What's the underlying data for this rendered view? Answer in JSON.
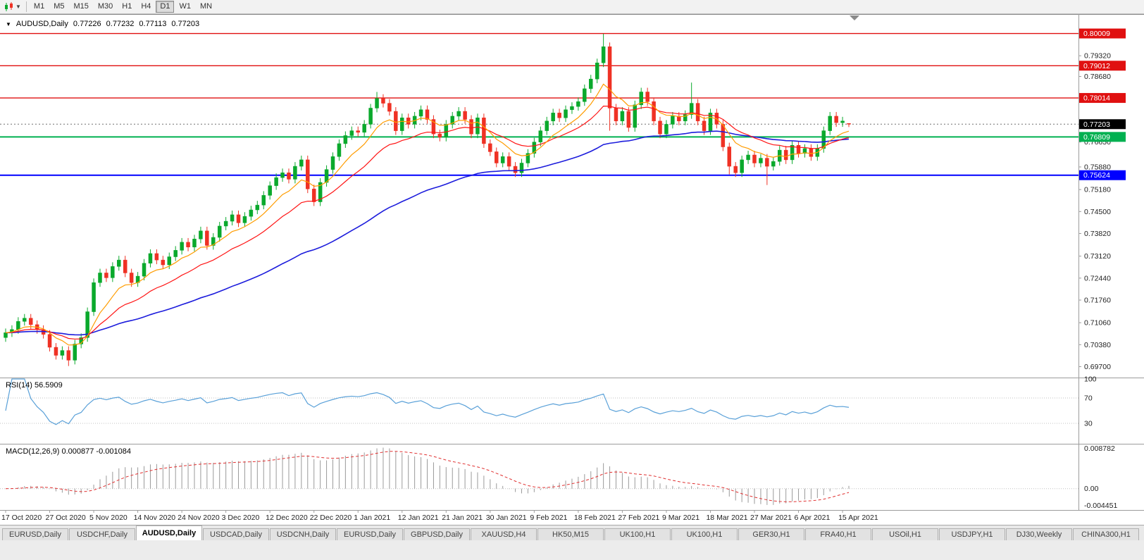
{
  "toolbar": {
    "timeframes": [
      "M1",
      "M5",
      "M15",
      "M30",
      "H1",
      "H4",
      "D1",
      "W1",
      "MN"
    ],
    "active_timeframe": "D1"
  },
  "chart": {
    "symbol_label": "AUDUSD,Daily",
    "quote": {
      "open": "0.77226",
      "high": "0.77232",
      "low": "0.77113",
      "close": "0.77203"
    },
    "rsi_label": "RSI(14) 56.5909",
    "macd_label": "MACD(12,26,9) 0.000877 -0.001084",
    "price_range": {
      "min": 0.6945,
      "max": 0.805
    },
    "colors": {
      "bull": "#0aa92c",
      "bear": "#ef3124",
      "ma_fast": "#ff9c00",
      "ma_mid": "#ff1414",
      "ma_slow": "#1c1cdc",
      "rsi": "#59a0d8",
      "macd_hist": "#9a9a9a",
      "macd_signal": "#e03030",
      "current_line": "#707070"
    },
    "hlines": [
      {
        "price": 0.80009,
        "label": "0.80009",
        "color": "#e01010",
        "width": 1.4
      },
      {
        "price": 0.79012,
        "label": "0.79012",
        "color": "#e01010",
        "width": 1.4
      },
      {
        "price": 0.78014,
        "label": "0.78014",
        "color": "#e01010",
        "width": 1.4
      },
      {
        "price": 0.76809,
        "label": "0.76809",
        "color": "#00b050",
        "width": 2
      },
      {
        "price": 0.75624,
        "label": "0.75624",
        "color": "#0000ff",
        "width": 2
      }
    ],
    "current_price": {
      "value": 0.77203,
      "label": "0.77203"
    },
    "axis_labels": [
      "0.79320",
      "0.78680",
      "0.76650",
      "0.75880",
      "0.75180",
      "0.74500",
      "0.73820",
      "0.73120",
      "0.72440",
      "0.71760",
      "0.71060",
      "0.70380",
      "0.69700"
    ]
  },
  "chart_data": {
    "type": "candlestick",
    "symbol": "AUDUSD",
    "timeframe": "Daily",
    "title": "AUDUSD,Daily",
    "ylim": [
      0.6945,
      0.805
    ],
    "bars_per_label": 7,
    "x_labels": [
      "17 Oct 2020",
      "27 Oct 2020",
      "5 Nov 2020",
      "14 Nov 2020",
      "24 Nov 2020",
      "3 Dec 2020",
      "12 Dec 2020",
      "22 Dec 2020",
      "1 Jan 2021",
      "12 Jan 2021",
      "21 Jan 2021",
      "30 Jan 2021",
      "9 Feb 2021",
      "18 Feb 2021",
      "27 Feb 2021",
      "9 Mar 2021",
      "18 Mar 2021",
      "27 Mar 2021",
      "6 Apr 2021",
      "15 Apr 2021"
    ],
    "candles_ohlc": [
      [
        0.706,
        0.7088,
        0.7047,
        0.7075
      ],
      [
        0.7075,
        0.7098,
        0.7062,
        0.7085
      ],
      [
        0.7085,
        0.7123,
        0.7072,
        0.711
      ],
      [
        0.711,
        0.7133,
        0.7097,
        0.712
      ],
      [
        0.712,
        0.7133,
        0.7087,
        0.71
      ],
      [
        0.71,
        0.7113,
        0.7072,
        0.7085
      ],
      [
        0.7085,
        0.7098,
        0.7057,
        0.707
      ],
      [
        0.707,
        0.7083,
        0.7017,
        0.703
      ],
      [
        0.703,
        0.7043,
        0.6992,
        0.7005
      ],
      [
        0.7005,
        0.7033,
        0.6992,
        0.702
      ],
      [
        0.702,
        0.7033,
        0.6972,
        0.699
      ],
      [
        0.699,
        0.7053,
        0.6977,
        0.704
      ],
      [
        0.704,
        0.7073,
        0.7027,
        0.706
      ],
      [
        0.706,
        0.7153,
        0.7047,
        0.714
      ],
      [
        0.714,
        0.7243,
        0.7127,
        0.723
      ],
      [
        0.723,
        0.7273,
        0.7217,
        0.726
      ],
      [
        0.726,
        0.7273,
        0.7232,
        0.7245
      ],
      [
        0.7245,
        0.7293,
        0.7232,
        0.728
      ],
      [
        0.728,
        0.7313,
        0.7267,
        0.73
      ],
      [
        0.73,
        0.7313,
        0.7247,
        0.726
      ],
      [
        0.726,
        0.7273,
        0.7217,
        0.723
      ],
      [
        0.723,
        0.7263,
        0.7217,
        0.725
      ],
      [
        0.725,
        0.7303,
        0.7237,
        0.729
      ],
      [
        0.729,
        0.7333,
        0.7277,
        0.732
      ],
      [
        0.732,
        0.7333,
        0.7287,
        0.73
      ],
      [
        0.73,
        0.7313,
        0.7272,
        0.7285
      ],
      [
        0.7285,
        0.7323,
        0.7272,
        0.731
      ],
      [
        0.731,
        0.7343,
        0.7297,
        0.733
      ],
      [
        0.733,
        0.7368,
        0.7317,
        0.7355
      ],
      [
        0.7355,
        0.7368,
        0.7327,
        0.734
      ],
      [
        0.734,
        0.7378,
        0.7327,
        0.7365
      ],
      [
        0.7365,
        0.7403,
        0.7352,
        0.739
      ],
      [
        0.739,
        0.7403,
        0.7332,
        0.7345
      ],
      [
        0.7345,
        0.7383,
        0.7332,
        0.737
      ],
      [
        0.737,
        0.7418,
        0.7357,
        0.7405
      ],
      [
        0.7405,
        0.7433,
        0.7392,
        0.742
      ],
      [
        0.742,
        0.7453,
        0.7407,
        0.744
      ],
      [
        0.744,
        0.7453,
        0.7402,
        0.7415
      ],
      [
        0.7415,
        0.7448,
        0.7402,
        0.7435
      ],
      [
        0.7435,
        0.7468,
        0.7422,
        0.7455
      ],
      [
        0.7455,
        0.7483,
        0.7442,
        0.747
      ],
      [
        0.747,
        0.7513,
        0.7457,
        0.75
      ],
      [
        0.75,
        0.7543,
        0.7487,
        0.753
      ],
      [
        0.753,
        0.7568,
        0.7517,
        0.7555
      ],
      [
        0.7555,
        0.7583,
        0.7542,
        0.757
      ],
      [
        0.757,
        0.7583,
        0.7537,
        0.755
      ],
      [
        0.755,
        0.7603,
        0.7537,
        0.759
      ],
      [
        0.759,
        0.7623,
        0.7577,
        0.761
      ],
      [
        0.761,
        0.7623,
        0.7507,
        0.752
      ],
      [
        0.752,
        0.7533,
        0.7467,
        0.748
      ],
      [
        0.748,
        0.7553,
        0.7467,
        0.754
      ],
      [
        0.754,
        0.7593,
        0.7527,
        0.758
      ],
      [
        0.758,
        0.7633,
        0.7567,
        0.762
      ],
      [
        0.762,
        0.7673,
        0.7607,
        0.766
      ],
      [
        0.766,
        0.7698,
        0.7647,
        0.7685
      ],
      [
        0.7685,
        0.7713,
        0.7672,
        0.77
      ],
      [
        0.77,
        0.7713,
        0.7682,
        0.7695
      ],
      [
        0.7695,
        0.7733,
        0.7682,
        0.772
      ],
      [
        0.772,
        0.7783,
        0.7707,
        0.777
      ],
      [
        0.777,
        0.782,
        0.7757,
        0.78
      ],
      [
        0.78,
        0.7813,
        0.7772,
        0.7785
      ],
      [
        0.7785,
        0.7798,
        0.7747,
        0.776
      ],
      [
        0.776,
        0.7773,
        0.7687,
        0.77
      ],
      [
        0.77,
        0.7753,
        0.7687,
        0.774
      ],
      [
        0.774,
        0.7753,
        0.7707,
        0.772
      ],
      [
        0.772,
        0.7758,
        0.7707,
        0.7745
      ],
      [
        0.7745,
        0.7778,
        0.7732,
        0.7765
      ],
      [
        0.7765,
        0.7778,
        0.7722,
        0.7735
      ],
      [
        0.7735,
        0.7748,
        0.7677,
        0.769
      ],
      [
        0.769,
        0.7703,
        0.7667,
        0.768
      ],
      [
        0.768,
        0.7733,
        0.7667,
        0.772
      ],
      [
        0.772,
        0.7758,
        0.7707,
        0.7745
      ],
      [
        0.7745,
        0.7773,
        0.7732,
        0.776
      ],
      [
        0.776,
        0.7773,
        0.7722,
        0.7735
      ],
      [
        0.7735,
        0.7748,
        0.7677,
        0.769
      ],
      [
        0.769,
        0.7753,
        0.7677,
        0.774
      ],
      [
        0.774,
        0.7753,
        0.7647,
        0.766
      ],
      [
        0.766,
        0.7673,
        0.7622,
        0.7635
      ],
      [
        0.7635,
        0.7648,
        0.7587,
        0.76
      ],
      [
        0.76,
        0.7633,
        0.7587,
        0.762
      ],
      [
        0.762,
        0.7633,
        0.7577,
        0.759
      ],
      [
        0.759,
        0.7603,
        0.7557,
        0.757
      ],
      [
        0.757,
        0.7613,
        0.7557,
        0.76
      ],
      [
        0.76,
        0.7643,
        0.7587,
        0.763
      ],
      [
        0.763,
        0.7678,
        0.7617,
        0.7665
      ],
      [
        0.7665,
        0.7713,
        0.7652,
        0.77
      ],
      [
        0.77,
        0.7743,
        0.7687,
        0.773
      ],
      [
        0.773,
        0.7768,
        0.7717,
        0.7755
      ],
      [
        0.7755,
        0.7768,
        0.7727,
        0.774
      ],
      [
        0.774,
        0.7778,
        0.7727,
        0.7765
      ],
      [
        0.7765,
        0.7788,
        0.7752,
        0.7775
      ],
      [
        0.7775,
        0.7803,
        0.7762,
        0.779
      ],
      [
        0.779,
        0.7843,
        0.7777,
        0.783
      ],
      [
        0.783,
        0.7873,
        0.7817,
        0.786
      ],
      [
        0.786,
        0.7923,
        0.7847,
        0.791
      ],
      [
        0.791,
        0.8,
        0.7897,
        0.796
      ],
      [
        0.796,
        0.7973,
        0.77,
        0.777
      ],
      [
        0.777,
        0.7783,
        0.7717,
        0.773
      ],
      [
        0.773,
        0.7773,
        0.7717,
        0.776
      ],
      [
        0.776,
        0.7773,
        0.7697,
        0.771
      ],
      [
        0.771,
        0.7793,
        0.7697,
        0.778
      ],
      [
        0.778,
        0.7833,
        0.7767,
        0.782
      ],
      [
        0.782,
        0.7833,
        0.7777,
        0.779
      ],
      [
        0.779,
        0.7803,
        0.7717,
        0.773
      ],
      [
        0.773,
        0.7743,
        0.7677,
        0.769
      ],
      [
        0.769,
        0.7733,
        0.7677,
        0.772
      ],
      [
        0.772,
        0.7758,
        0.7707,
        0.7745
      ],
      [
        0.7745,
        0.7758,
        0.7717,
        0.773
      ],
      [
        0.773,
        0.7763,
        0.7717,
        0.775
      ],
      [
        0.775,
        0.7849,
        0.7737,
        0.7785
      ],
      [
        0.7785,
        0.7798,
        0.7717,
        0.773
      ],
      [
        0.773,
        0.7743,
        0.7687,
        0.77
      ],
      [
        0.77,
        0.7768,
        0.7687,
        0.7755
      ],
      [
        0.7755,
        0.7768,
        0.7707,
        0.772
      ],
      [
        0.772,
        0.7733,
        0.7637,
        0.765
      ],
      [
        0.765,
        0.7663,
        0.7565,
        0.759
      ],
      [
        0.759,
        0.7603,
        0.7557,
        0.757
      ],
      [
        0.757,
        0.7623,
        0.7557,
        0.761
      ],
      [
        0.761,
        0.7638,
        0.7597,
        0.7625
      ],
      [
        0.7625,
        0.7638,
        0.7587,
        0.76
      ],
      [
        0.76,
        0.7628,
        0.7587,
        0.7615
      ],
      [
        0.7615,
        0.7628,
        0.7532,
        0.759
      ],
      [
        0.759,
        0.7618,
        0.7577,
        0.7605
      ],
      [
        0.7605,
        0.7653,
        0.7592,
        0.764
      ],
      [
        0.764,
        0.7653,
        0.7597,
        0.761
      ],
      [
        0.761,
        0.7668,
        0.7597,
        0.7655
      ],
      [
        0.7655,
        0.7668,
        0.7617,
        0.763
      ],
      [
        0.763,
        0.7658,
        0.7617,
        0.7645
      ],
      [
        0.7645,
        0.7658,
        0.7607,
        0.762
      ],
      [
        0.762,
        0.7658,
        0.7607,
        0.7645
      ],
      [
        0.7645,
        0.7713,
        0.7632,
        0.77
      ],
      [
        0.77,
        0.7758,
        0.7687,
        0.7745
      ],
      [
        0.7745,
        0.7758,
        0.7712,
        0.7725
      ],
      [
        0.7725,
        0.7743,
        0.7712,
        0.773
      ],
      [
        0.77226,
        0.77232,
        0.77113,
        0.77203
      ]
    ],
    "overlays": [
      {
        "name": "fast-ma",
        "period": 8,
        "color_key": "ma_fast",
        "width": 1.2
      },
      {
        "name": "mid-ma",
        "period": 18,
        "color_key": "ma_mid",
        "width": 1.2
      },
      {
        "name": "slow-ma",
        "period": 55,
        "color_key": "ma_slow",
        "width": 1.6
      }
    ],
    "rsi": {
      "period": 14,
      "current": 56.5909,
      "levels": [
        100,
        70,
        30
      ]
    },
    "macd": {
      "fast": 12,
      "slow": 26,
      "signal": 9,
      "current": 0.000877,
      "signal_current": -0.001084,
      "axis_labels": [
        "0.008782",
        "0.00",
        "-0.004451"
      ]
    }
  },
  "tabs": {
    "active_index": 2,
    "items": [
      "EURUSD,Daily",
      "USDCHF,Daily",
      "AUDUSD,Daily",
      "USDCAD,Daily",
      "USDCNH,Daily",
      "EURUSD,Daily",
      "GBPUSD,Daily",
      "XAUUSD,H4",
      "HK50,M15",
      "UK100,H1",
      "UK100,H1",
      "GER30,H1",
      "FRA40,H1",
      "USOil,H1",
      "USDJPY,H1",
      "DJ30,Weekly",
      "CHINA300,H1"
    ]
  }
}
